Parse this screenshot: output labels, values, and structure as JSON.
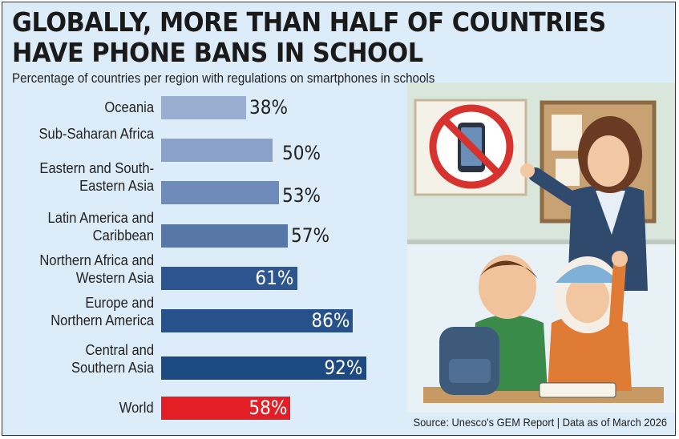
{
  "title_lines": [
    "GLOBALLY, MORE THAN HALF OF COUNTRIES",
    "HAVE PHONE BANS IN SCHOOL"
  ],
  "subtitle": "Percentage of countries per region with regulations on smartphones in schools",
  "source": "Source: Unesco's GEM Report | Data as of March 2026",
  "chart_data": {
    "type": "bar",
    "orientation": "horizontal",
    "title": "GLOBALLY, MORE THAN HALF OF COUNTRIES HAVE PHONE BANS IN SCHOOL",
    "subtitle": "Percentage of countries per region with regulations on smartphones in schools",
    "categories": [
      "Oceania",
      "Sub-Saharan Africa",
      "Eastern and South-Eastern Asia",
      "Latin America and Caribbean",
      "Northern Africa and Western Asia",
      "Europe and Northern America",
      "Central and Southern Asia",
      "World"
    ],
    "category_lines": [
      [
        "Oceania"
      ],
      [
        "Sub-Saharan Africa"
      ],
      [
        "Eastern and South-",
        "Eastern Asia"
      ],
      [
        "Latin America and",
        "Caribbean"
      ],
      [
        "Northern Africa and",
        "Western Asia"
      ],
      [
        "Europe and",
        "Northern America"
      ],
      [
        "Central and",
        "Southern Asia"
      ],
      [
        "World"
      ]
    ],
    "values": [
      38,
      50,
      53,
      57,
      61,
      86,
      92,
      58
    ],
    "data_labels": [
      "38%",
      "50%",
      "53%",
      "57%",
      "61%",
      "86%",
      "92%",
      "58%"
    ],
    "colors": [
      "#9aaed1",
      "#8aa2c9",
      "#6f8bb9",
      "#5677a8",
      "#2d5691",
      "#26518a",
      "#1d4a81",
      "#e31e25"
    ],
    "xlim": [
      0,
      100
    ],
    "grid": false,
    "legend": "none"
  },
  "colors": {
    "background": "#dcecf8",
    "highlight": "#e31e25"
  },
  "illustration": {
    "icons": [
      "no-phone-sign",
      "teacher",
      "students",
      "backpack"
    ]
  }
}
